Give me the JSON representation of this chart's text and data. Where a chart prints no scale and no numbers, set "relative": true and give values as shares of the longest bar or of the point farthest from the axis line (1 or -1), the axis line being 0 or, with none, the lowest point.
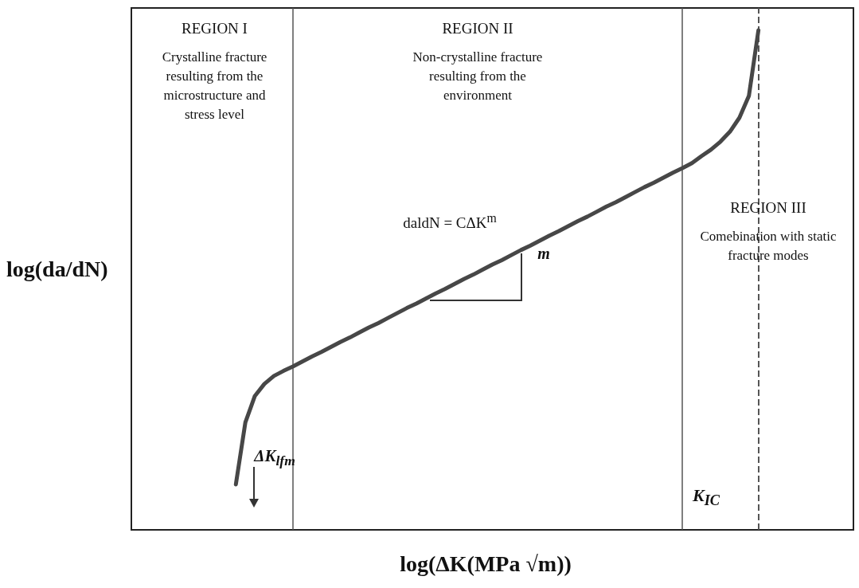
{
  "chart_data": {
    "type": "line",
    "relative": true,
    "xlabel": "log(ΔK(MPa √m))",
    "ylabel": "log(da/dN)",
    "categories": [
      null,
      null,
      null,
      null,
      null,
      null,
      null,
      null,
      null,
      null,
      null,
      null,
      null,
      null,
      null,
      null,
      null,
      null,
      null,
      null,
      null,
      null,
      null,
      null,
      null,
      null,
      null,
      null,
      null,
      null,
      null,
      null,
      null,
      null,
      null,
      null,
      null,
      null,
      null,
      null,
      null,
      null,
      null,
      null,
      null,
      null,
      null,
      null,
      null,
      null,
      null,
      null,
      null,
      null,
      null,
      null,
      null,
      null,
      null,
      null,
      null,
      null,
      null,
      null,
      null,
      null,
      null,
      null,
      null,
      null,
      null,
      null,
      null,
      null,
      null,
      null,
      null
    ],
    "series": [
      {
        "color": "#474747",
        "values": [
          null,
          null,
          null,
          null,
          null,
          null,
          null,
          null,
          null,
          null,
          null,
          0.091,
          0.215,
          0.268,
          0.292,
          0.308,
          0.318,
          0.327,
          0.337,
          0.347,
          0.356,
          0.366,
          0.376,
          0.385,
          0.395,
          0.405,
          0.414,
          0.424,
          0.434,
          0.444,
          0.453,
          0.463,
          0.473,
          0.482,
          0.492,
          0.502,
          0.511,
          0.521,
          0.531,
          0.54,
          0.55,
          0.56,
          0.569,
          0.579,
          0.589,
          0.598,
          0.608,
          0.618,
          0.627,
          0.637,
          0.647,
          0.656,
          0.666,
          0.676,
          0.686,
          0.695,
          0.705,
          0.715,
          0.724,
          0.734,
          0.748,
          0.761,
          0.777,
          0.797,
          0.825,
          0.869,
          1.0,
          null,
          null,
          null,
          null,
          null,
          null,
          null,
          null,
          null,
          null
        ]
      }
    ],
    "annotations": [
      "REGION I",
      "Crystalline fracture resulting from the microstructure and stress level",
      "REGION II",
      "Non-crystalline fracture resulting from the environment",
      "daldN = CΔK$^{m}$",
      "m",
      "ΔK$_{lfm}$",
      "REGION III",
      "Comebination with static fracture modes",
      "K$_{IC}$"
    ]
  }
}
